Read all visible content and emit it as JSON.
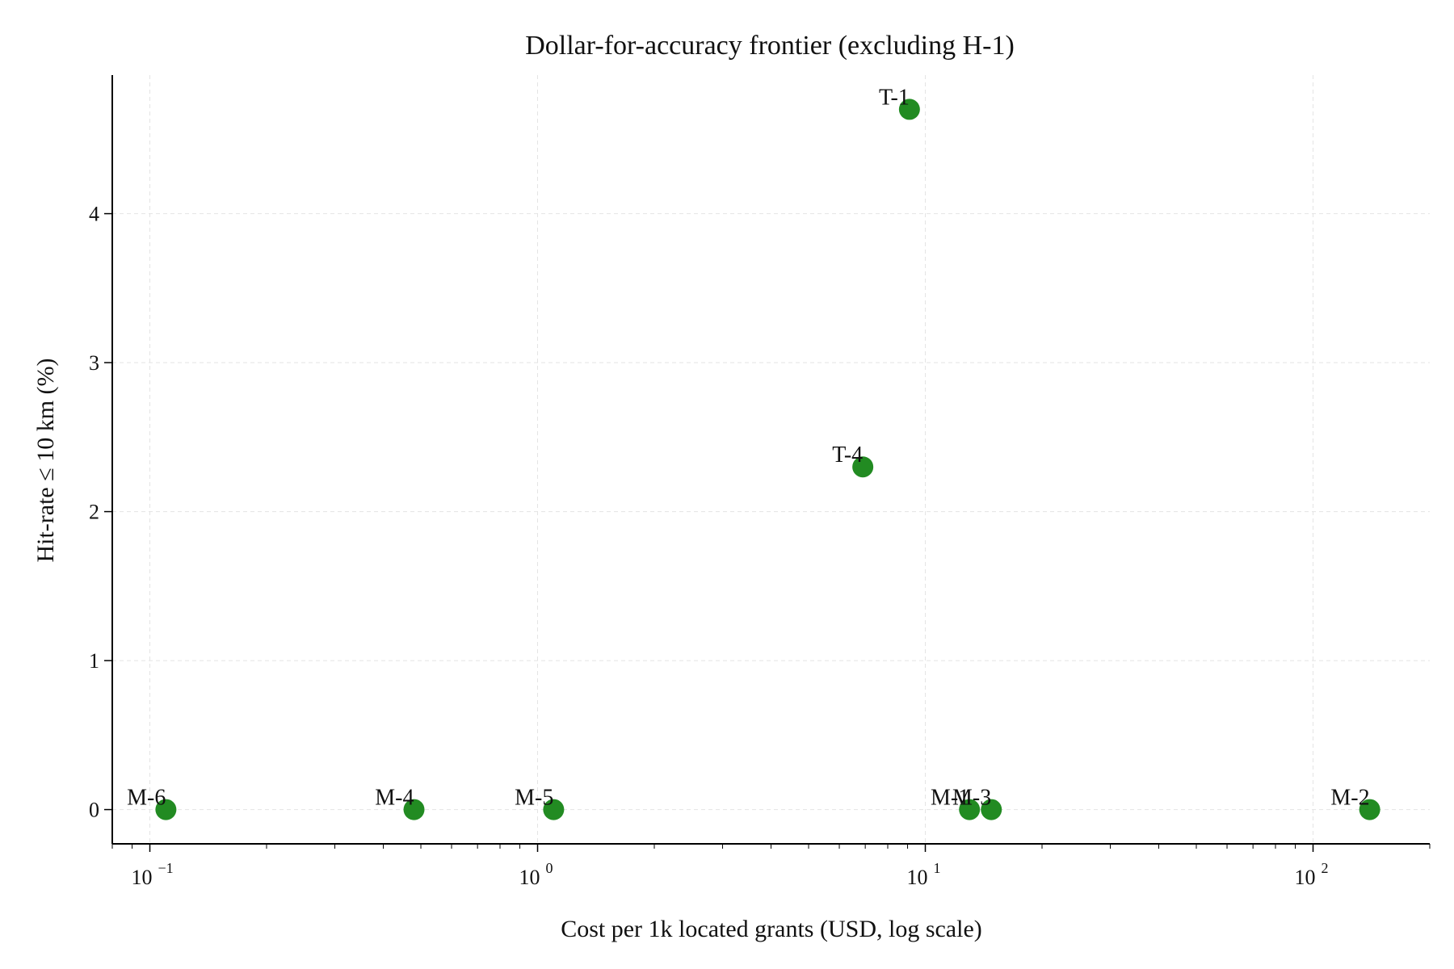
{
  "chart_data": {
    "type": "scatter",
    "title": "Dollar-for-accuracy frontier (excluding H-1)",
    "xlabel": "Cost per 1k located grants (USD, log scale)",
    "ylabel": "Hit-rate ≤ 10 km (%)",
    "xscale": "log",
    "xlim": [
      0.08,
      200
    ],
    "ylim": [
      -0.23,
      4.93
    ],
    "x_ticks": [
      {
        "value": 0.1,
        "base": "10",
        "exponent": "−1"
      },
      {
        "value": 1,
        "base": "10",
        "exponent": "0"
      },
      {
        "value": 10,
        "base": "10",
        "exponent": "1"
      },
      {
        "value": 100,
        "base": "10",
        "exponent": "2"
      }
    ],
    "y_ticks": [
      0,
      1,
      2,
      3,
      4
    ],
    "grid": true,
    "marker_color": "#228B22",
    "points": [
      {
        "label": "M-6",
        "x": 0.11,
        "y": 0
      },
      {
        "label": "M-4",
        "x": 0.48,
        "y": 0
      },
      {
        "label": "M-5",
        "x": 1.1,
        "y": 0
      },
      {
        "label": "T-4",
        "x": 6.9,
        "y": 2.3
      },
      {
        "label": "T-1",
        "x": 9.1,
        "y": 4.7
      },
      {
        "label": "M-1",
        "x": 13,
        "y": 0
      },
      {
        "label": "M-3",
        "x": 14.8,
        "y": 0
      },
      {
        "label": "M-2",
        "x": 140,
        "y": 0
      }
    ]
  }
}
